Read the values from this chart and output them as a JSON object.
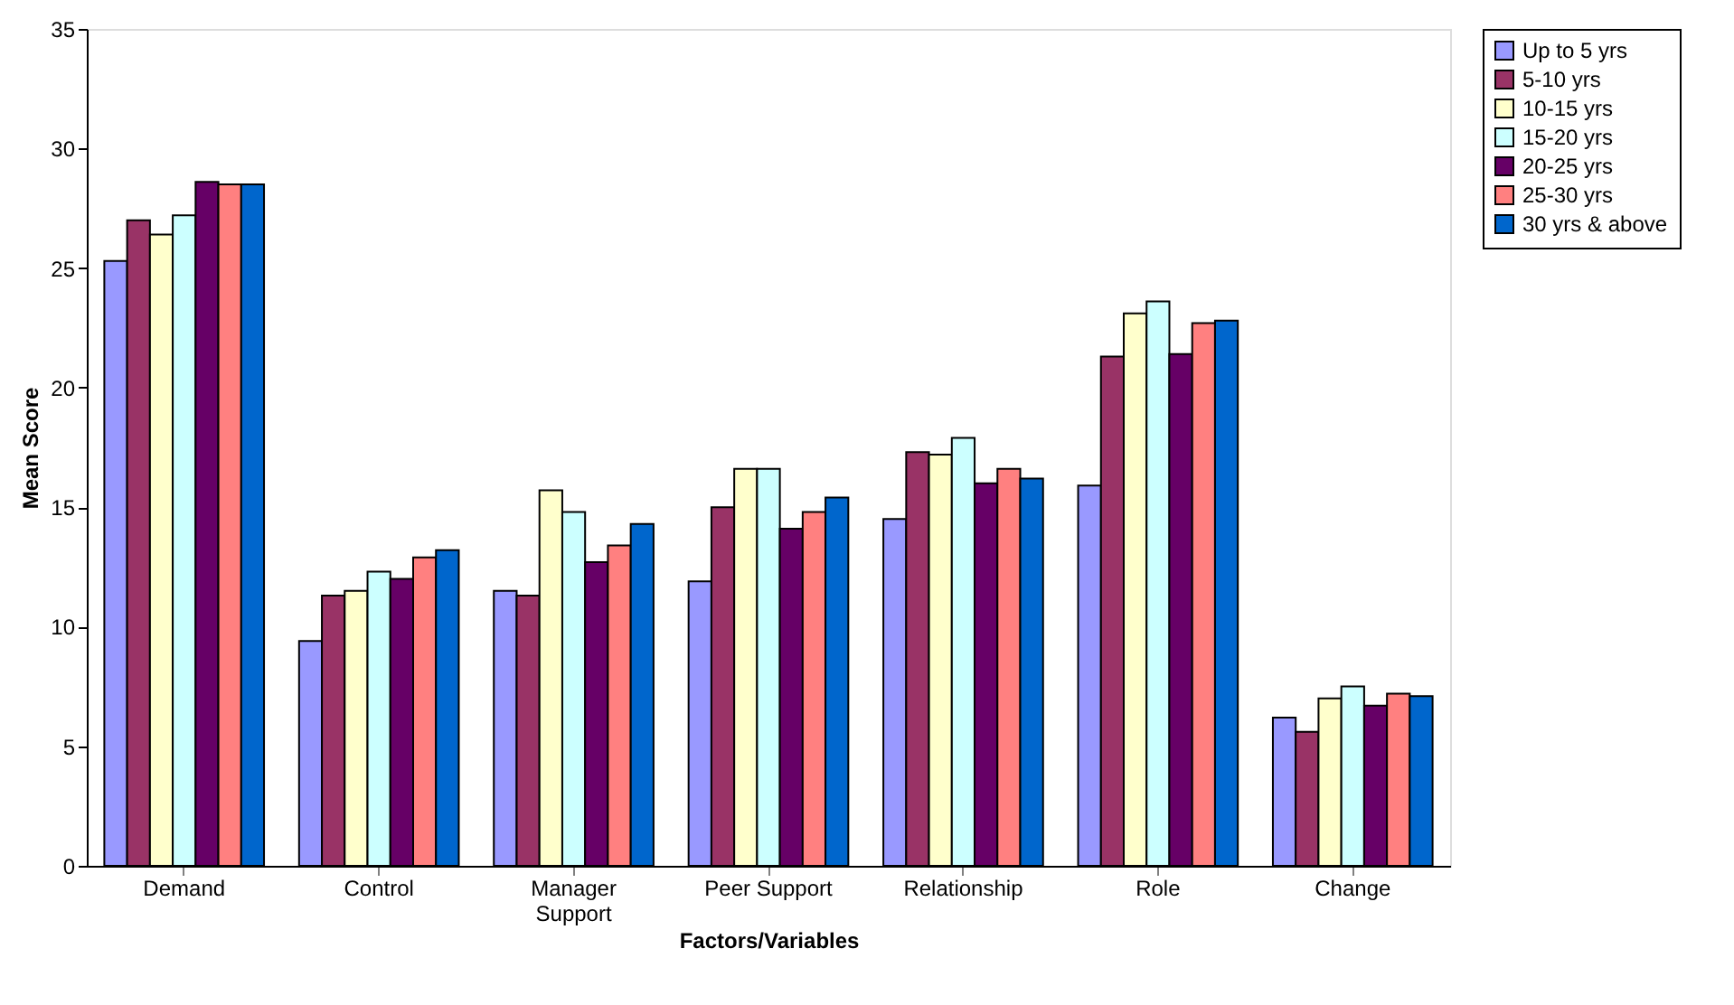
{
  "chart_data": {
    "type": "bar",
    "xlabel": "Factors/Variables",
    "ylabel": "Mean Score",
    "categories": [
      "Demand",
      "Control",
      "Manager Support",
      "Peer Support",
      "Relationship",
      "Role",
      "Change"
    ],
    "series": [
      {
        "name": "Up to 5 yrs",
        "color": "#9999ff",
        "values": [
          25.3,
          9.4,
          11.5,
          11.9,
          14.5,
          15.9,
          6.2
        ]
      },
      {
        "name": "5-10 yrs",
        "color": "#993366",
        "values": [
          27.0,
          11.3,
          11.3,
          15.0,
          17.3,
          21.3,
          5.6
        ]
      },
      {
        "name": "10-15 yrs",
        "color": "#ffffcc",
        "values": [
          26.4,
          11.5,
          15.7,
          16.6,
          17.2,
          23.1,
          7.0
        ]
      },
      {
        "name": "15-20 yrs",
        "color": "#ccffff",
        "values": [
          27.2,
          12.3,
          14.8,
          16.6,
          17.9,
          23.6,
          7.5
        ]
      },
      {
        "name": "20-25 yrs",
        "color": "#660066",
        "values": [
          28.6,
          12.0,
          12.7,
          14.1,
          16.0,
          21.4,
          6.7
        ]
      },
      {
        "name": "25-30 yrs",
        "color": "#ff8080",
        "values": [
          28.5,
          12.9,
          13.4,
          14.8,
          16.6,
          22.7,
          7.2
        ]
      },
      {
        "name": "30 yrs & above",
        "color": "#0066cc",
        "values": [
          28.5,
          13.2,
          14.3,
          15.4,
          16.2,
          22.8,
          7.1
        ]
      }
    ],
    "ylim": [
      0,
      35
    ],
    "yticks": [
      0,
      5,
      10,
      15,
      20,
      25,
      30,
      35
    ],
    "grid": false,
    "legend": "right"
  }
}
